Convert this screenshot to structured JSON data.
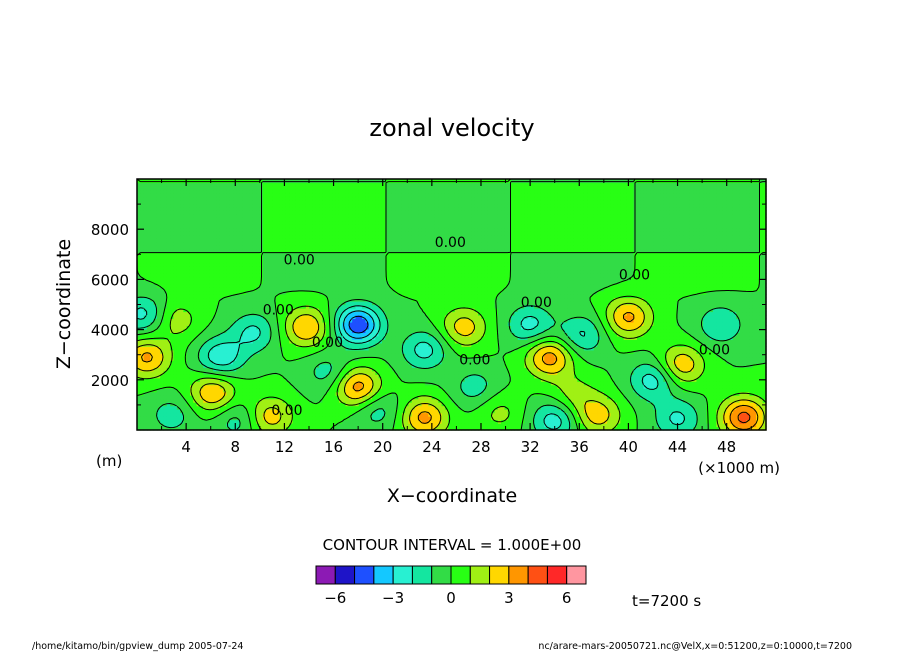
{
  "chart_data": {
    "type": "heatmap",
    "title": "zonal velocity",
    "xlabel": "X−coordinate",
    "ylabel": "Z−coordinate",
    "x_unit_label": "(×1000 m)",
    "y_unit_label": "(m)",
    "xlim": [
      0,
      51.2
    ],
    "ylim": [
      0,
      10000
    ],
    "x_ticks": [
      4,
      8,
      12,
      16,
      20,
      24,
      28,
      32,
      36,
      40,
      44,
      48
    ],
    "y_ticks": [
      2000,
      4000,
      6000,
      8000
    ],
    "contour_interval_label": "CONTOUR INTERVAL = 1.000E+00",
    "contour_labels": [
      {
        "text": "0.00",
        "x": 13.2,
        "y": 6800
      },
      {
        "text": "0.00",
        "x": 25.5,
        "y": 7500
      },
      {
        "text": "0.00",
        "x": 40.5,
        "y": 6200
      },
      {
        "text": "0.00",
        "x": 32.5,
        "y": 5100
      },
      {
        "text": "0.00",
        "x": 11.5,
        "y": 4800
      },
      {
        "text": "0.00",
        "x": 15.5,
        "y": 3500
      },
      {
        "text": "0.00",
        "x": 27.5,
        "y": 2800
      },
      {
        "text": "0.00",
        "x": 47.0,
        "y": 3200
      },
      {
        "text": "0.00",
        "x": 12.2,
        "y": 800
      }
    ],
    "colorbar": {
      "levels": [
        -7,
        -6,
        -5,
        -4,
        -3,
        -2,
        -1,
        0,
        1,
        2,
        3,
        4,
        5,
        6
      ],
      "colors": [
        "#8c1ab4",
        "#1e14c8",
        "#1e50ff",
        "#14c8ff",
        "#28f0d2",
        "#14e6a0",
        "#32dc46",
        "#28ff14",
        "#a0f014",
        "#ffd700",
        "#ff9600",
        "#ff5014",
        "#ff2828",
        "#ff96a0"
      ],
      "tick_labels": [
        "−6",
        "−3",
        "0",
        "3",
        "6"
      ],
      "tick_values": [
        -6,
        -3,
        0,
        3,
        6
      ]
    },
    "features": [
      {
        "x": 0.8,
        "y": 2900,
        "v": 3.2
      },
      {
        "x": 6.2,
        "y": 1500,
        "v": 3.0
      },
      {
        "x": 10.8,
        "y": 550,
        "v": 2.6
      },
      {
        "x": 13.8,
        "y": 4100,
        "v": 3.0
      },
      {
        "x": 18.0,
        "y": 1700,
        "v": 3.6
      },
      {
        "x": 23.4,
        "y": 500,
        "v": 3.3
      },
      {
        "x": 26.6,
        "y": 4100,
        "v": 2.5
      },
      {
        "x": 33.6,
        "y": 2900,
        "v": 3.5
      },
      {
        "x": 37.5,
        "y": 600,
        "v": 2.5
      },
      {
        "x": 40.0,
        "y": 4500,
        "v": 3.2
      },
      {
        "x": 44.3,
        "y": 2600,
        "v": 2.8
      },
      {
        "x": 49.4,
        "y": 500,
        "v": 4.3
      },
      {
        "x": 3.2,
        "y": 4400,
        "v": 1.6
      },
      {
        "x": 35.5,
        "y": 1400,
        "v": 1.4
      },
      {
        "x": 29.5,
        "y": 700,
        "v": 1.3
      },
      {
        "x": 18.0,
        "y": 4200,
        "v": -4.8
      },
      {
        "x": 0.5,
        "y": 4600,
        "v": -2.4
      },
      {
        "x": 6.8,
        "y": 2900,
        "v": -2.8
      },
      {
        "x": 9.5,
        "y": 3900,
        "v": -2.2
      },
      {
        "x": 23.4,
        "y": 3200,
        "v": -2.4
      },
      {
        "x": 32.0,
        "y": 4200,
        "v": -2.4
      },
      {
        "x": 36.2,
        "y": 3800,
        "v": -2.2
      },
      {
        "x": 42.0,
        "y": 2000,
        "v": -2.6
      },
      {
        "x": 34.0,
        "y": 400,
        "v": -2.6
      },
      {
        "x": 44.0,
        "y": 450,
        "v": -2.2
      },
      {
        "x": 47.5,
        "y": 4200,
        "v": -2.0
      },
      {
        "x": 19.5,
        "y": 800,
        "v": -1.6
      },
      {
        "x": 8.2,
        "y": 400,
        "v": -1.6
      },
      {
        "x": 2.8,
        "y": 600,
        "v": -1.5
      },
      {
        "x": 15.5,
        "y": 2300,
        "v": -1.5
      },
      {
        "x": 27.5,
        "y": 1700,
        "v": -1.5
      }
    ]
  },
  "footer": {
    "left_text": "/home/kitamo/bin/gpview_dump  2005-07-24",
    "time_label": "t=7200 s",
    "right_text": "nc/arare-mars-20050721.nc@VelX,x=0:51200,z=0:10000,t=7200"
  }
}
